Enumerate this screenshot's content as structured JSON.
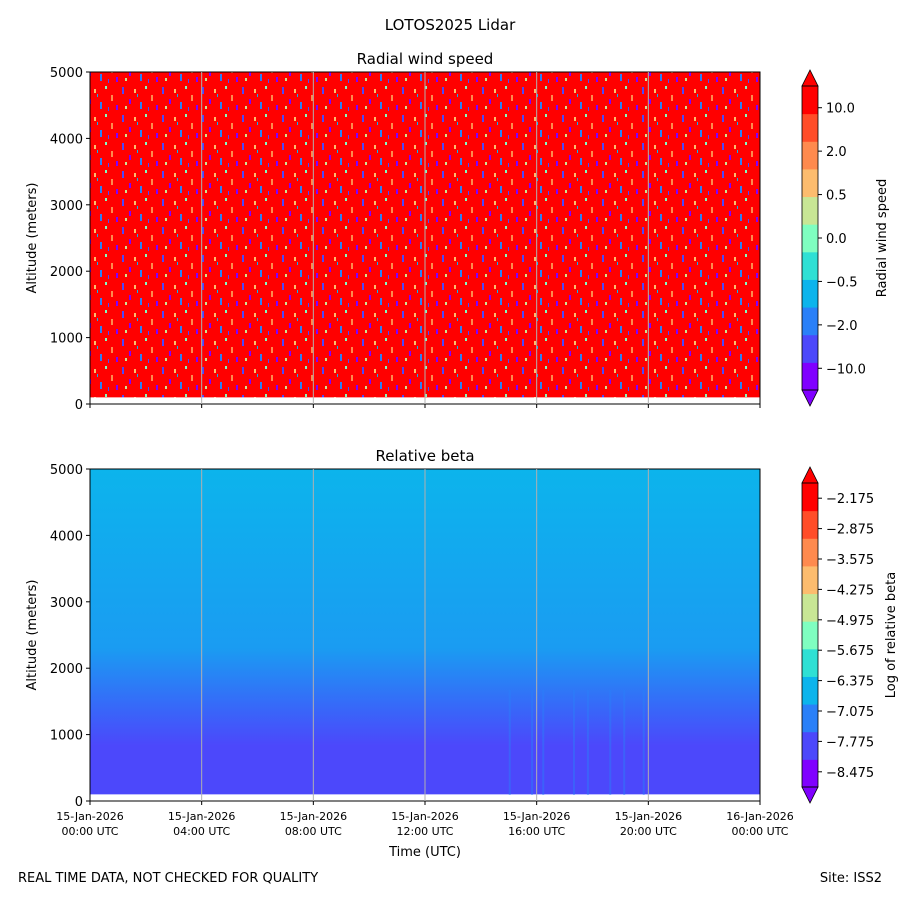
{
  "figure": {
    "suptitle": "LOTOS2025 Lidar",
    "footer_left": "REAL TIME DATA, NOT CHECKED FOR QUALITY",
    "footer_right": "Site: ISS2"
  },
  "chart_data": [
    {
      "type": "heatmap",
      "title": "Radial wind speed",
      "xlabel": "",
      "ylabel": "Altitude (meters)",
      "x_range_hours": [
        0,
        24
      ],
      "ylim": [
        0,
        5000
      ],
      "data_altitude_range": [
        100,
        5000
      ],
      "yticks": [
        0,
        1000,
        2000,
        3000,
        4000,
        5000
      ],
      "xticks_hours": [
        0,
        4,
        8,
        12,
        16,
        20,
        24
      ],
      "colorbar": {
        "label": "Radial wind speed",
        "extend": "both",
        "tick_labels": [
          "10.0",
          "2.0",
          "0.5",
          "0.0",
          "−0.5",
          "−2.0",
          "−10.0"
        ],
        "colors": [
          "#8000ff",
          "#4c48fb",
          "#2a80f8",
          "#0cb4ec",
          "#2fe0d4",
          "#7ffec0",
          "#c8e695",
          "#fcbc6e",
          "#fe8a4e",
          "#ff4d28",
          "#ff0000"
        ]
      },
      "description_values": {
        "dominant_color_index": 10,
        "noise_mix": [
          0,
          1,
          2,
          3,
          4,
          5,
          6,
          7,
          8,
          9,
          10
        ]
      }
    },
    {
      "type": "heatmap",
      "title": "Relative beta",
      "xlabel": "Time (UTC)",
      "ylabel": "Altitude (meters)",
      "x_range_hours": [
        0,
        24
      ],
      "ylim": [
        0,
        5000
      ],
      "data_altitude_range": [
        100,
        5000
      ],
      "yticks": [
        0,
        1000,
        2000,
        3000,
        4000,
        5000
      ],
      "xticks_hours": [
        0,
        4,
        8,
        12,
        16,
        20,
        24
      ],
      "xtick_labels": [
        [
          "15-Jan-2026",
          "00:00 UTC"
        ],
        [
          "15-Jan-2026",
          "04:00 UTC"
        ],
        [
          "15-Jan-2026",
          "08:00 UTC"
        ],
        [
          "15-Jan-2026",
          "12:00 UTC"
        ],
        [
          "15-Jan-2026",
          "16:00 UTC"
        ],
        [
          "15-Jan-2026",
          "20:00 UTC"
        ],
        [
          "16-Jan-2026",
          "00:00 UTC"
        ]
      ],
      "colorbar": {
        "label": "Log of relative beta",
        "extend": "both",
        "tick_labels": [
          "−2.175",
          "−2.875",
          "−3.575",
          "−4.275",
          "−4.975",
          "−5.675",
          "−6.375",
          "−7.075",
          "−7.775",
          "−8.475"
        ],
        "colors": [
          "#8000ff",
          "#4c48fb",
          "#2a80f8",
          "#0cb4ec",
          "#2fe0d4",
          "#7ffec0",
          "#c8e695",
          "#fcbc6e",
          "#fe8a4e",
          "#ff4d28",
          "#ff0000"
        ]
      },
      "altitude_profile_log_beta": [
        {
          "alt": 100,
          "value": -8.3
        },
        {
          "alt": 800,
          "value": -8.1
        },
        {
          "alt": 1300,
          "value": -7.8
        },
        {
          "alt": 2200,
          "value": -7.3
        },
        {
          "alt": 5000,
          "value": -7.0
        }
      ]
    }
  ]
}
